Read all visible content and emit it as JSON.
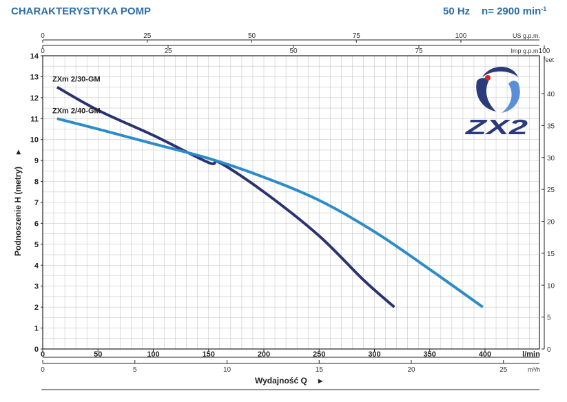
{
  "header": {
    "title": "CHARAKTERYSTYKA POMP",
    "frequency": "50 Hz",
    "speed": "n= 2900 min",
    "speed_sup": "-1"
  },
  "logo": {
    "text": "ZX2",
    "colors": [
      "#2a3a7a",
      "#5a8fd8",
      "#e02020"
    ]
  },
  "chart_data": {
    "type": "line",
    "xlabel": "Wydajność Q",
    "ylabel": "Podnoszenie H  (metry)",
    "xlim": [
      0,
      440
    ],
    "ylim": [
      0,
      14
    ],
    "grid": true,
    "x_unit": "l/min",
    "y_unit": "",
    "x_ticks": [
      "0",
      "50",
      "100",
      "150",
      "200",
      "250",
      "300",
      "350",
      "400"
    ],
    "y_ticks": [
      "0",
      "1",
      "2",
      "3",
      "4",
      "5",
      "6",
      "7",
      "8",
      "9",
      "10",
      "11",
      "12",
      "13",
      "14"
    ],
    "secondary_axes": {
      "top_us": {
        "unit": "US g.p.m.",
        "ticks": [
          "0",
          "25",
          "50",
          "75",
          "100"
        ]
      },
      "top_imp": {
        "unit": "Imp g.p.m.",
        "ticks": [
          "0",
          "25",
          "50",
          "75",
          "100"
        ]
      },
      "bottom_m3h": {
        "unit": "m³/h",
        "ticks": [
          "0",
          "5",
          "10",
          "15",
          "20",
          "25"
        ]
      },
      "right_feet": {
        "unit": "feet",
        "ticks": [
          "0",
          "5",
          "10",
          "15",
          "20",
          "25",
          "30",
          "35",
          "40"
        ]
      }
    },
    "series": [
      {
        "name": "ZXm 2/30-GM",
        "color": "#2a3270",
        "x": [
          13,
          50,
          100,
          150,
          160,
          200,
          250,
          290,
          318
        ],
        "y": [
          12.5,
          11.4,
          10.2,
          8.9,
          8.9,
          7.5,
          5.4,
          3.3,
          2.0
        ]
      },
      {
        "name": "ZXm 2/40-GM",
        "color": "#2b8cc8",
        "x": [
          13,
          50,
          100,
          150,
          200,
          250,
          300,
          350,
          398
        ],
        "y": [
          11.0,
          10.5,
          9.8,
          9.1,
          8.2,
          7.1,
          5.6,
          3.8,
          2.0
        ]
      }
    ]
  }
}
